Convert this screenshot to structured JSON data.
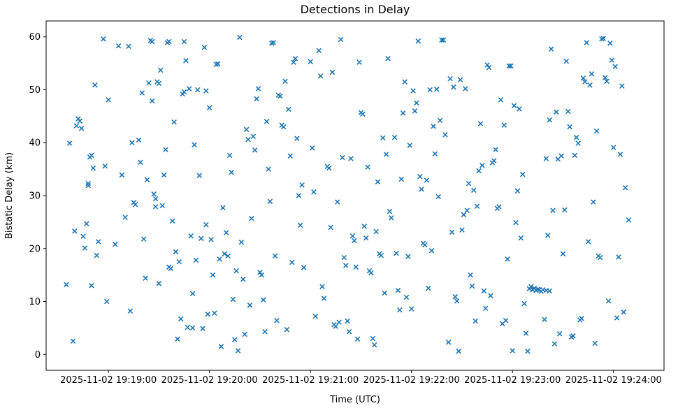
{
  "chart_data": {
    "type": "scatter",
    "title": "Detections in Delay",
    "xlabel": "Time (UTC)",
    "ylabel": "Bistatic Delay (km)",
    "marker": "x",
    "marker_color": "#1f77b4",
    "grid": false,
    "legend": null,
    "x_axis_unit": "seconds after 2025-11-02 19:19:00 UTC",
    "xlim_seconds": [
      -37,
      330
    ],
    "ylim": [
      -3,
      63
    ],
    "x_ticks_seconds": [
      0,
      60,
      120,
      180,
      240,
      300
    ],
    "x_tick_labels": [
      "2025-11-02 19:19:00",
      "2025-11-02 19:20:00",
      "2025-11-02 19:21:00",
      "2025-11-02 19:22:00",
      "2025-11-02 19:23:00",
      "2025-11-02 19:24:00"
    ],
    "y_ticks": [
      0,
      10,
      20,
      30,
      40,
      50,
      60
    ],
    "points": [
      [
        -25,
        13.2
      ],
      [
        -23,
        39.9
      ],
      [
        -21,
        2.5
      ],
      [
        -20,
        23.3
      ],
      [
        -19,
        43.2
      ],
      [
        -18,
        44.5
      ],
      [
        -17,
        44.1
      ],
      [
        -16,
        42.7
      ],
      [
        -15,
        22.3
      ],
      [
        -14,
        20.1
      ],
      [
        -13,
        24.7
      ],
      [
        -12,
        31.9
      ],
      [
        -12,
        32.3
      ],
      [
        -11,
        37.3
      ],
      [
        -10,
        37.6
      ],
      [
        -10,
        13.0
      ],
      [
        -9,
        35.2
      ],
      [
        -8,
        50.9
      ],
      [
        -7,
        18.7
      ],
      [
        -6,
        21.3
      ],
      [
        -3,
        59.6
      ],
      [
        -2,
        35.6
      ],
      [
        -1,
        10.0
      ],
      [
        0,
        48.1
      ],
      [
        4,
        20.8
      ],
      [
        6,
        58.3
      ],
      [
        8,
        33.9
      ],
      [
        10,
        25.9
      ],
      [
        12,
        58.2
      ],
      [
        13,
        8.2
      ],
      [
        14,
        40.0
      ],
      [
        15,
        28.7
      ],
      [
        16,
        28.3
      ],
      [
        18,
        40.5
      ],
      [
        19,
        36.3
      ],
      [
        20,
        49.4
      ],
      [
        21,
        21.8
      ],
      [
        22,
        14.4
      ],
      [
        23,
        33.0
      ],
      [
        24,
        51.3
      ],
      [
        25,
        59.3
      ],
      [
        26,
        59.1
      ],
      [
        26,
        47.9
      ],
      [
        27,
        30.3
      ],
      [
        28,
        29.4
      ],
      [
        28,
        27.9
      ],
      [
        29,
        51.5
      ],
      [
        30,
        51.2
      ],
      [
        30,
        13.4
      ],
      [
        31,
        53.7
      ],
      [
        32,
        28.1
      ],
      [
        33,
        33.9
      ],
      [
        34,
        38.7
      ],
      [
        35,
        58.9
      ],
      [
        36,
        59.1
      ],
      [
        36,
        16.5
      ],
      [
        37,
        16.2
      ],
      [
        38,
        25.2
      ],
      [
        39,
        43.9
      ],
      [
        40,
        19.4
      ],
      [
        41,
        2.9
      ],
      [
        42,
        17.5
      ],
      [
        43,
        6.7
      ],
      [
        44,
        49.2
      ],
      [
        45,
        59.1
      ],
      [
        45,
        49.6
      ],
      [
        46,
        55.5
      ],
      [
        47,
        5.1
      ],
      [
        48,
        50.2
      ],
      [
        49,
        22.4
      ],
      [
        50,
        11.5
      ],
      [
        50,
        5.0
      ],
      [
        51,
        39.6
      ],
      [
        52,
        17.8
      ],
      [
        53,
        50.0
      ],
      [
        54,
        33.8
      ],
      [
        55,
        21.9
      ],
      [
        56,
        4.9
      ],
      [
        57,
        58.0
      ],
      [
        58,
        24.5
      ],
      [
        58,
        49.8
      ],
      [
        59,
        7.6
      ],
      [
        60,
        46.6
      ],
      [
        61,
        21.7
      ],
      [
        62,
        15.0
      ],
      [
        63,
        7.8
      ],
      [
        64,
        54.8
      ],
      [
        65,
        54.9
      ],
      [
        66,
        18.0
      ],
      [
        67,
        1.5
      ],
      [
        68,
        27.7
      ],
      [
        69,
        19.0
      ],
      [
        70,
        23.0
      ],
      [
        71,
        18.6
      ],
      [
        72,
        37.6
      ],
      [
        73,
        34.4
      ],
      [
        74,
        10.4
      ],
      [
        75,
        2.8
      ],
      [
        76,
        15.8
      ],
      [
        77,
        0.7
      ],
      [
        78,
        59.9
      ],
      [
        79,
        21.2
      ],
      [
        80,
        14.2
      ],
      [
        81,
        3.8
      ],
      [
        82,
        42.5
      ],
      [
        83,
        40.6
      ],
      [
        84,
        9.3
      ],
      [
        85,
        25.7
      ],
      [
        86,
        41.2
      ],
      [
        87,
        38.6
      ],
      [
        88,
        48.3
      ],
      [
        89,
        50.2
      ],
      [
        90,
        15.5
      ],
      [
        91,
        15.0
      ],
      [
        92,
        10.3
      ],
      [
        93,
        4.3
      ],
      [
        94,
        44.0
      ],
      [
        95,
        35.0
      ],
      [
        96,
        28.9
      ],
      [
        97,
        58.8
      ],
      [
        98,
        58.9
      ],
      [
        99,
        18.6
      ],
      [
        100,
        6.4
      ],
      [
        101,
        49.0
      ],
      [
        102,
        48.8
      ],
      [
        103,
        43.3
      ],
      [
        104,
        43.0
      ],
      [
        105,
        51.6
      ],
      [
        106,
        4.7
      ],
      [
        107,
        46.3
      ],
      [
        108,
        37.5
      ],
      [
        109,
        17.4
      ],
      [
        110,
        55.2
      ],
      [
        111,
        55.9
      ],
      [
        112,
        40.8
      ],
      [
        113,
        30.0
      ],
      [
        114,
        24.4
      ],
      [
        115,
        32.0
      ],
      [
        116,
        16.4
      ],
      [
        120,
        55.3
      ],
      [
        121,
        39.0
      ],
      [
        122,
        30.7
      ],
      [
        123,
        7.2
      ],
      [
        125,
        57.4
      ],
      [
        126,
        52.6
      ],
      [
        127,
        12.8
      ],
      [
        128,
        10.6
      ],
      [
        130,
        35.5
      ],
      [
        131,
        35.2
      ],
      [
        132,
        24.0
      ],
      [
        133,
        53.3
      ],
      [
        134,
        5.6
      ],
      [
        135,
        5.3
      ],
      [
        136,
        28.8
      ],
      [
        137,
        6.1
      ],
      [
        138,
        59.5
      ],
      [
        139,
        37.2
      ],
      [
        140,
        18.3
      ],
      [
        141,
        16.8
      ],
      [
        142,
        6.3
      ],
      [
        143,
        4.3
      ],
      [
        144,
        37.0
      ],
      [
        145,
        22.4
      ],
      [
        146,
        21.5
      ],
      [
        147,
        16.5
      ],
      [
        148,
        2.9
      ],
      [
        149,
        55.2
      ],
      [
        150,
        45.7
      ],
      [
        151,
        45.4
      ],
      [
        152,
        24.2
      ],
      [
        153,
        22.0
      ],
      [
        154,
        35.4
      ],
      [
        155,
        15.8
      ],
      [
        156,
        15.4
      ],
      [
        157,
        3.0
      ],
      [
        158,
        1.8
      ],
      [
        159,
        23.2
      ],
      [
        160,
        32.6
      ],
      [
        161,
        19.0
      ],
      [
        162,
        18.7
      ],
      [
        163,
        40.9
      ],
      [
        164,
        11.6
      ],
      [
        165,
        37.8
      ],
      [
        166,
        55.9
      ],
      [
        167,
        27.0
      ],
      [
        168,
        25.8
      ],
      [
        170,
        41.0
      ],
      [
        171,
        19.1
      ],
      [
        172,
        12.1
      ],
      [
        173,
        8.4
      ],
      [
        174,
        33.1
      ],
      [
        175,
        45.6
      ],
      [
        176,
        51.5
      ],
      [
        177,
        10.8
      ],
      [
        178,
        18.5
      ],
      [
        179,
        39.5
      ],
      [
        180,
        8.6
      ],
      [
        181,
        49.8
      ],
      [
        182,
        46.0
      ],
      [
        183,
        47.5
      ],
      [
        184,
        59.2
      ],
      [
        185,
        33.6
      ],
      [
        186,
        31.2
      ],
      [
        187,
        21.0
      ],
      [
        188,
        20.7
      ],
      [
        189,
        32.9
      ],
      [
        190,
        12.5
      ],
      [
        191,
        50.0
      ],
      [
        192,
        19.6
      ],
      [
        193,
        43.1
      ],
      [
        194,
        37.9
      ],
      [
        195,
        50.1
      ],
      [
        196,
        29.8
      ],
      [
        197,
        44.2
      ],
      [
        198,
        59.4
      ],
      [
        199,
        59.4
      ],
      [
        200,
        41.5
      ],
      [
        202,
        2.3
      ],
      [
        203,
        52.1
      ],
      [
        204,
        23.1
      ],
      [
        205,
        50.5
      ],
      [
        206,
        10.9
      ],
      [
        207,
        10.1
      ],
      [
        208,
        0.6
      ],
      [
        209,
        51.9
      ],
      [
        210,
        23.5
      ],
      [
        211,
        26.4
      ],
      [
        212,
        50.2
      ],
      [
        213,
        27.2
      ],
      [
        214,
        32.3
      ],
      [
        215,
        15.0
      ],
      [
        216,
        12.9
      ],
      [
        217,
        31.0
      ],
      [
        218,
        6.3
      ],
      [
        219,
        28.0
      ],
      [
        220,
        34.7
      ],
      [
        221,
        43.6
      ],
      [
        222,
        35.7
      ],
      [
        223,
        12.0
      ],
      [
        224,
        8.7
      ],
      [
        225,
        54.7
      ],
      [
        226,
        54.2
      ],
      [
        227,
        11.1
      ],
      [
        228,
        36.2
      ],
      [
        229,
        36.6
      ],
      [
        230,
        38.7
      ],
      [
        231,
        27.6
      ],
      [
        232,
        27.9
      ],
      [
        233,
        48.1
      ],
      [
        234,
        5.8
      ],
      [
        235,
        43.3
      ],
      [
        236,
        6.4
      ],
      [
        237,
        18.0
      ],
      [
        238,
        54.5
      ],
      [
        239,
        54.5
      ],
      [
        240,
        0.7
      ],
      [
        241,
        47.0
      ],
      [
        242,
        24.9
      ],
      [
        243,
        30.9
      ],
      [
        244,
        46.4
      ],
      [
        245,
        22.0
      ],
      [
        246,
        34.0
      ],
      [
        247,
        9.6
      ],
      [
        248,
        4.0
      ],
      [
        249,
        0.6
      ],
      [
        250,
        12.4
      ],
      [
        251,
        12.8
      ],
      [
        252,
        12.2
      ],
      [
        253,
        12.5
      ],
      [
        254,
        12.1
      ],
      [
        255,
        12.3
      ],
      [
        256,
        12.2
      ],
      [
        257,
        11.9
      ],
      [
        258,
        12.2
      ],
      [
        260,
        12.1
      ],
      [
        262,
        12.0
      ],
      [
        259,
        6.6
      ],
      [
        260,
        37.0
      ],
      [
        261,
        22.5
      ],
      [
        262,
        44.3
      ],
      [
        263,
        57.7
      ],
      [
        264,
        27.2
      ],
      [
        265,
        2.0
      ],
      [
        266,
        45.8
      ],
      [
        267,
        36.9
      ],
      [
        268,
        3.9
      ],
      [
        269,
        37.5
      ],
      [
        270,
        19.0
      ],
      [
        271,
        27.3
      ],
      [
        272,
        55.4
      ],
      [
        273,
        45.9
      ],
      [
        274,
        43.0
      ],
      [
        275,
        3.3
      ],
      [
        276,
        3.5
      ],
      [
        277,
        37.6
      ],
      [
        278,
        41.0
      ],
      [
        279,
        39.9
      ],
      [
        280,
        6.5
      ],
      [
        281,
        6.8
      ],
      [
        282,
        52.2
      ],
      [
        283,
        51.5
      ],
      [
        284,
        58.9
      ],
      [
        285,
        21.3
      ],
      [
        286,
        50.9
      ],
      [
        287,
        53.0
      ],
      [
        288,
        28.8
      ],
      [
        289,
        2.1
      ],
      [
        290,
        42.2
      ],
      [
        291,
        18.6
      ],
      [
        292,
        18.3
      ],
      [
        293,
        59.6
      ],
      [
        294,
        59.7
      ],
      [
        295,
        52.3
      ],
      [
        296,
        51.6
      ],
      [
        297,
        10.1
      ],
      [
        298,
        58.8
      ],
      [
        299,
        55.6
      ],
      [
        300,
        39.1
      ],
      [
        301,
        54.4
      ],
      [
        302,
        6.9
      ],
      [
        303,
        18.4
      ],
      [
        304,
        37.8
      ],
      [
        305,
        50.7
      ],
      [
        306,
        8.0
      ],
      [
        307,
        31.5
      ],
      [
        309,
        25.4
      ]
    ]
  }
}
